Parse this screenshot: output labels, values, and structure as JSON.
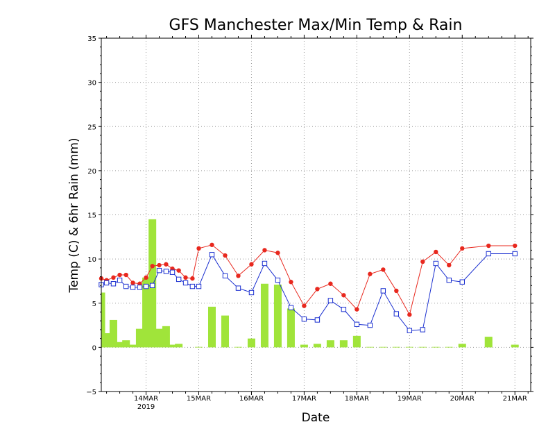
{
  "chart_data": {
    "type": "line",
    "title": "GFS Manchester Max/Min Temp & Rain",
    "xlabel": "Date",
    "ylabel": "Temp (C) & 6hr Rain (mm)",
    "ylim": [
      -5,
      35
    ],
    "yticks": [
      -5,
      0,
      5,
      10,
      15,
      20,
      25,
      30,
      35
    ],
    "ytick_labels": [
      "−5",
      "0",
      "5",
      "10",
      "15",
      "20",
      "25",
      "30",
      "35"
    ],
    "x_unit": "days since 13MAR 2019 00Z",
    "xlim": [
      3.15,
      11.3
    ],
    "xticks": [
      {
        "x": 4,
        "label": "14MAR",
        "sub": "2019"
      },
      {
        "x": 5,
        "label": "15MAR",
        "sub": ""
      },
      {
        "x": 6,
        "label": "16MAR",
        "sub": ""
      },
      {
        "x": 7,
        "label": "17MAR",
        "sub": ""
      },
      {
        "x": 8,
        "label": "18MAR",
        "sub": ""
      },
      {
        "x": 9,
        "label": "19MAR",
        "sub": ""
      },
      {
        "x": 10,
        "label": "20MAR",
        "sub": ""
      },
      {
        "x": 11,
        "label": "21MAR",
        "sub": ""
      }
    ],
    "grid": true,
    "colors": {
      "max": "#e8281e",
      "min": "#1a2fd0",
      "rain": "#a0e43a"
    },
    "max_temp": {
      "x": [
        3.15,
        3.25,
        3.38,
        3.5,
        3.62,
        3.75,
        3.88,
        4.0,
        4.12,
        4.25,
        4.38,
        4.5,
        4.62,
        4.75,
        4.88,
        5.0,
        5.25,
        5.5,
        5.75,
        6.0,
        6.25,
        6.5,
        6.75,
        7.0,
        7.25,
        7.5,
        7.75,
        8.0,
        8.25,
        8.5,
        8.75,
        9.0,
        9.25,
        9.5,
        9.75,
        10.0,
        10.5,
        11.0
      ],
      "y": [
        7.8,
        7.6,
        7.9,
        8.2,
        8.2,
        7.3,
        7.2,
        7.9,
        9.2,
        9.3,
        9.4,
        8.9,
        8.7,
        7.9,
        7.8,
        11.2,
        11.6,
        10.4,
        8.1,
        9.4,
        11.0,
        10.7,
        7.4,
        4.7,
        6.6,
        7.2,
        5.9,
        4.3,
        8.3,
        8.8,
        6.4,
        3.7,
        9.7,
        10.8,
        9.3,
        11.2,
        11.5,
        11.5
      ]
    },
    "min_temp": {
      "x": [
        3.15,
        3.25,
        3.38,
        3.5,
        3.62,
        3.75,
        3.88,
        4.0,
        4.12,
        4.25,
        4.38,
        4.5,
        4.62,
        4.75,
        4.88,
        5.0,
        5.25,
        5.5,
        5.75,
        6.0,
        6.25,
        6.5,
        6.75,
        7.0,
        7.25,
        7.5,
        7.75,
        8.0,
        8.25,
        8.5,
        8.75,
        9.0,
        9.25,
        9.5,
        9.75,
        10.0,
        10.5,
        11.0
      ],
      "y": [
        7.1,
        7.3,
        7.2,
        7.6,
        6.9,
        6.8,
        6.8,
        6.9,
        7.0,
        8.7,
        8.6,
        8.5,
        7.7,
        7.3,
        6.9,
        6.9,
        10.5,
        8.1,
        6.7,
        6.2,
        9.5,
        7.6,
        4.5,
        3.2,
        3.1,
        5.3,
        4.3,
        2.6,
        2.5,
        6.4,
        3.8,
        1.9,
        2.0,
        9.5,
        7.6,
        7.4,
        10.6,
        10.6
      ]
    },
    "rain": {
      "x": [
        3.15,
        3.25,
        3.38,
        3.5,
        3.62,
        3.75,
        3.88,
        4.0,
        4.12,
        4.25,
        4.38,
        4.5,
        4.62,
        4.75,
        5.0,
        5.25,
        5.5,
        5.75,
        6.0,
        6.25,
        6.5,
        6.75,
        7.0,
        7.25,
        7.5,
        7.75,
        8.0,
        8.25,
        8.5,
        8.75,
        9.0,
        9.25,
        9.5,
        9.75,
        10.0,
        10.25,
        10.5,
        10.75,
        11.0
      ],
      "y": [
        6.2,
        1.6,
        3.1,
        0.6,
        0.8,
        0.3,
        2.1,
        7.9,
        14.5,
        2.1,
        2.4,
        0.3,
        0.4,
        0.0,
        0.05,
        4.6,
        3.6,
        0.05,
        1.0,
        7.2,
        7.1,
        4.4,
        0.3,
        0.4,
        0.8,
        0.8,
        1.3,
        0.05,
        0.05,
        0.05,
        0.05,
        0.05,
        0.05,
        0.05,
        0.4,
        0.0,
        1.2,
        0.0,
        0.3
      ]
    }
  }
}
